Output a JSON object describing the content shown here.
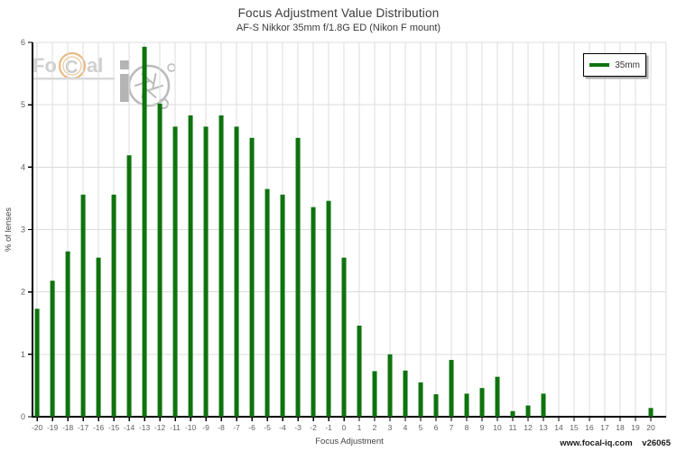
{
  "legend": {
    "label": "35mm"
  },
  "watermark": {
    "part_fo": "Fo",
    "part_c": "C",
    "part_al": "al"
  },
  "footer": {
    "site": "www.focal-iq.com",
    "version": "v26065"
  },
  "colors": {
    "bar": "#0e730e",
    "grid": "#dcdcdc",
    "axis": "#000000",
    "tick_label": "#606060",
    "axis_title": "#444444",
    "title_text": "#3a3a3a"
  },
  "chart_data": {
    "type": "bar",
    "title": "Focus Adjustment Value Distribution",
    "subtitle": "AF-S Nikkor 35mm f/1.8G ED (Nikon F mount)",
    "xlabel": "Focus Adjustment",
    "ylabel": "% of lenses",
    "xlim": [
      -20.3,
      21.0
    ],
    "ylim": [
      0,
      6
    ],
    "y_ticks": [
      0,
      1,
      2,
      3,
      4,
      5,
      6
    ],
    "grid": true,
    "legend_position": "top-right",
    "series": [
      {
        "name": "35mm",
        "color": "#0e730e",
        "x": [
          -20,
          -19,
          -18,
          -17,
          -16,
          -15,
          -14,
          -13,
          -12,
          -11,
          -10,
          -9,
          -8,
          -7,
          -6,
          -5,
          -4,
          -3,
          -2,
          -1,
          0,
          1,
          2,
          3,
          4,
          5,
          6,
          7,
          8,
          9,
          10,
          11,
          12,
          13,
          14,
          15,
          16,
          17,
          18,
          19,
          20
        ],
        "values": [
          1.73,
          2.18,
          2.65,
          3.56,
          2.55,
          3.56,
          4.19,
          5.93,
          5.02,
          4.65,
          4.83,
          4.65,
          4.83,
          4.65,
          4.47,
          3.65,
          3.56,
          4.47,
          3.36,
          3.46,
          2.55,
          1.46,
          0.73,
          1.0,
          0.74,
          0.55,
          0.36,
          0.91,
          0.37,
          0.46,
          0.64,
          0.09,
          0.18,
          0.37,
          0,
          0,
          0,
          0,
          0,
          0,
          0.14
        ]
      }
    ]
  }
}
